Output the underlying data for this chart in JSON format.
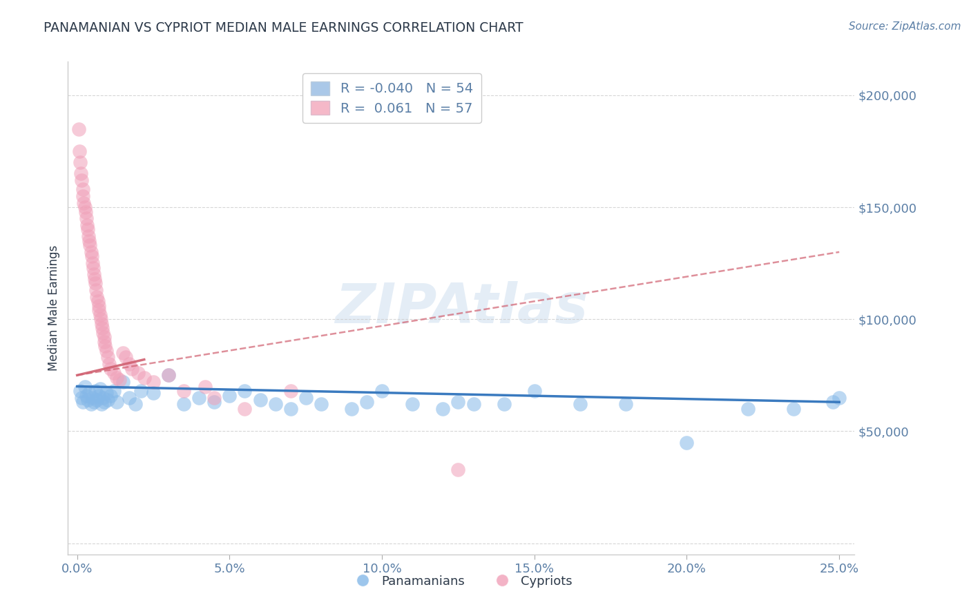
{
  "title": "PANAMANIAN VS CYPRIOT MEDIAN MALE EARNINGS CORRELATION CHART",
  "source": "Source: ZipAtlas.com",
  "ylabel": "Median Male Earnings",
  "xlabel_ticks": [
    "0.0%",
    "5.0%",
    "10.0%",
    "15.0%",
    "20.0%",
    "25.0%"
  ],
  "xlabel_vals": [
    0.0,
    5.0,
    10.0,
    15.0,
    20.0,
    25.0
  ],
  "ytick_vals": [
    0,
    50000,
    100000,
    150000,
    200000
  ],
  "ytick_labels": [
    "",
    "$50,000",
    "$100,000",
    "$150,000",
    "$200,000"
  ],
  "xlim": [
    -0.3,
    25.5
  ],
  "ylim": [
    -5000,
    215000
  ],
  "blue_color": "#85b8e8",
  "pink_color": "#f0a0b8",
  "blue_line_color": "#3a7abf",
  "pink_line_color": "#d06070",
  "title_color": "#2d3a4a",
  "axis_color": "#5b7fa6",
  "watermark": "ZIPAtlas",
  "pan_x": [
    0.1,
    0.15,
    0.2,
    0.25,
    0.3,
    0.35,
    0.4,
    0.45,
    0.5,
    0.55,
    0.6,
    0.65,
    0.7,
    0.75,
    0.8,
    0.85,
    0.9,
    0.95,
    1.0,
    1.1,
    1.2,
    1.3,
    1.5,
    1.7,
    1.9,
    2.1,
    2.5,
    3.0,
    3.5,
    4.0,
    4.5,
    5.0,
    5.5,
    6.0,
    6.5,
    7.0,
    7.5,
    8.0,
    9.0,
    9.5,
    10.0,
    11.0,
    12.0,
    12.5,
    13.0,
    14.0,
    15.0,
    16.5,
    18.0,
    20.0,
    22.0,
    23.5,
    24.8,
    25.0
  ],
  "pan_y": [
    68000,
    65000,
    63000,
    70000,
    66000,
    64000,
    67000,
    62000,
    65000,
    63000,
    68000,
    64000,
    66000,
    69000,
    62000,
    65000,
    63000,
    67000,
    64000,
    66000,
    68000,
    63000,
    72000,
    65000,
    62000,
    68000,
    67000,
    75000,
    62000,
    65000,
    63000,
    66000,
    68000,
    64000,
    62000,
    60000,
    65000,
    62000,
    60000,
    63000,
    68000,
    62000,
    60000,
    63000,
    62000,
    62000,
    68000,
    62000,
    62000,
    45000,
    60000,
    60000,
    63000,
    65000
  ],
  "cyp_x": [
    0.05,
    0.08,
    0.1,
    0.12,
    0.15,
    0.18,
    0.2,
    0.22,
    0.25,
    0.28,
    0.3,
    0.32,
    0.35,
    0.38,
    0.4,
    0.42,
    0.45,
    0.48,
    0.5,
    0.52,
    0.55,
    0.58,
    0.6,
    0.62,
    0.65,
    0.68,
    0.7,
    0.72,
    0.75,
    0.78,
    0.8,
    0.82,
    0.85,
    0.88,
    0.9,
    0.92,
    0.95,
    1.0,
    1.05,
    1.1,
    1.2,
    1.3,
    1.4,
    1.5,
    1.6,
    1.7,
    1.8,
    2.0,
    2.2,
    2.5,
    3.0,
    3.5,
    4.2,
    4.5,
    5.5,
    7.0,
    12.5
  ],
  "cyp_y": [
    185000,
    175000,
    170000,
    165000,
    162000,
    158000,
    155000,
    152000,
    150000,
    148000,
    145000,
    142000,
    140000,
    137000,
    135000,
    133000,
    130000,
    128000,
    125000,
    123000,
    120000,
    118000,
    116000,
    113000,
    110000,
    108000,
    106000,
    104000,
    102000,
    100000,
    98000,
    96000,
    94000,
    92000,
    90000,
    88000,
    86000,
    83000,
    80000,
    78000,
    76000,
    74000,
    73000,
    85000,
    83000,
    80000,
    78000,
    76000,
    74000,
    72000,
    75000,
    68000,
    70000,
    65000,
    60000,
    68000,
    33000
  ],
  "pink_trend_x": [
    0.0,
    25.0
  ],
  "pink_trend_y": [
    75000,
    130000
  ],
  "blue_trend_x": [
    0.0,
    25.0
  ],
  "blue_trend_y": [
    70000,
    63000
  ]
}
